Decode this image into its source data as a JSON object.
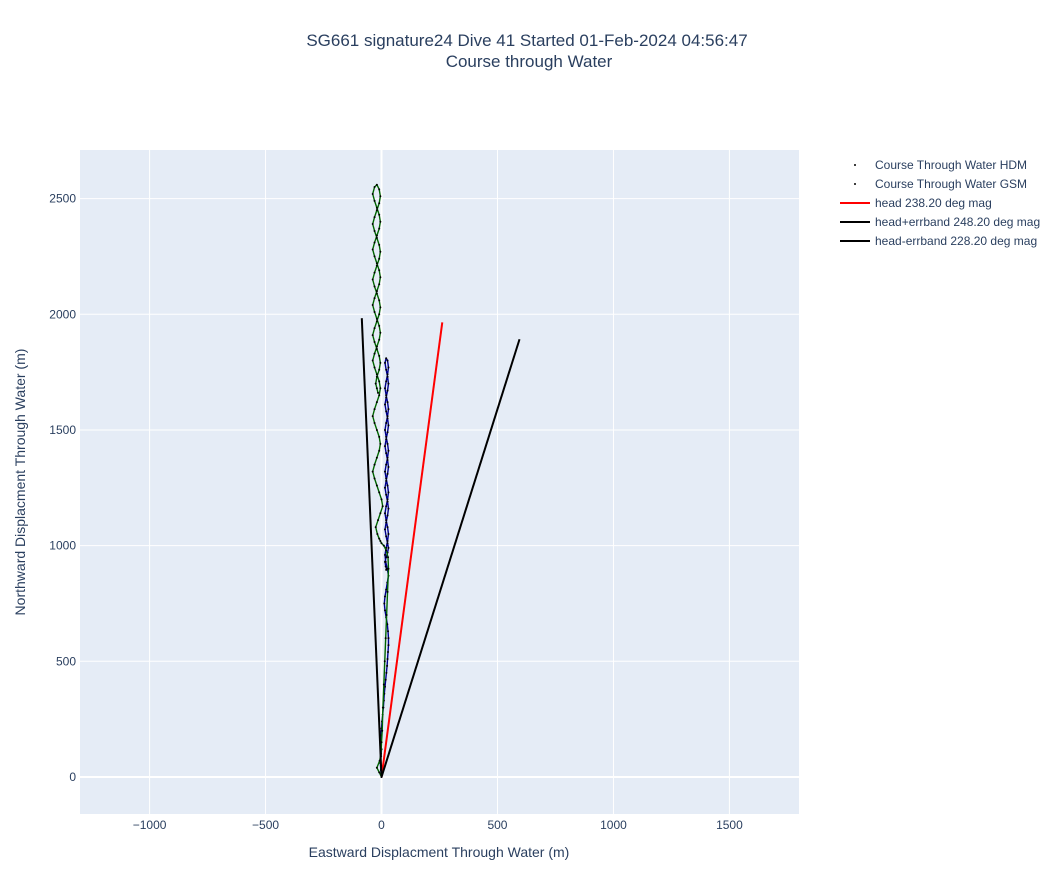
{
  "chart_data": {
    "type": "scatter",
    "title_line1": "SG661 signature24 Dive 41 Started 01-Feb-2024 04:56:47",
    "title_line2": "Course through Water",
    "xlabel": "Eastward Displacment Through Water (m)",
    "ylabel": "Northward Displacment Through Water (m)",
    "xlim": [
      -1300,
      1800
    ],
    "ylim": [
      -160,
      2710
    ],
    "xticks": [
      -1000,
      -500,
      0,
      500,
      1000,
      1500
    ],
    "xtick_labels": [
      "−1000",
      "−500",
      "0",
      "500",
      "1000",
      "1500"
    ],
    "yticks": [
      0,
      500,
      1000,
      1500,
      2000,
      2500
    ],
    "ytick_labels": [
      "0",
      "500",
      "1000",
      "1500",
      "2000",
      "2500"
    ],
    "grid": true,
    "legend_position": "right",
    "plot_bg": "#E5ECF6",
    "series": [
      {
        "name": "Course Through Water HDM",
        "kind": "markers",
        "color": "#00008B",
        "trace_color": "#000000",
        "x": [
          0,
          -3,
          -5,
          -2,
          0,
          -4,
          -3,
          0,
          2,
          5,
          8,
          10,
          12,
          15,
          18,
          21,
          24,
          26,
          28,
          30,
          30,
          28,
          25,
          20,
          15,
          12,
          15,
          20,
          25,
          30,
          25,
          18,
          15,
          20,
          26,
          30,
          26,
          20,
          15,
          20,
          26,
          30,
          26,
          20,
          15,
          20,
          26,
          30,
          26,
          20,
          15,
          20,
          26,
          30,
          26,
          20,
          15,
          20,
          26,
          30,
          26,
          20,
          15,
          20,
          26,
          30,
          26,
          20,
          15,
          20,
          26,
          30,
          26,
          20,
          15,
          20,
          26,
          30,
          26,
          20,
          15,
          20,
          26,
          30,
          26,
          20,
          15,
          20,
          26,
          30,
          26,
          20,
          15,
          18,
          22,
          20
        ],
        "y": [
          0,
          30,
          60,
          90,
          120,
          150,
          180,
          210,
          240,
          270,
          300,
          330,
          360,
          390,
          420,
          450,
          480,
          510,
          540,
          570,
          600,
          630,
          660,
          690,
          720,
          750,
          780,
          810,
          840,
          870,
          900,
          930,
          960,
          990,
          1020,
          1050,
          1080,
          1110,
          1140,
          1170,
          1200,
          1230,
          1260,
          1290,
          1320,
          1350,
          1380,
          1410,
          1440,
          1470,
          1500,
          1530,
          1560,
          1590,
          1620,
          1650,
          1680,
          1710,
          1740,
          1770,
          1800,
          1810,
          1790,
          1760,
          1730,
          1700,
          1670,
          1640,
          1610,
          1580,
          1550,
          1520,
          1490,
          1460,
          1430,
          1400,
          1370,
          1340,
          1310,
          1280,
          1250,
          1220,
          1190,
          1160,
          1130,
          1100,
          1070,
          1040,
          1010,
          990,
          970,
          950,
          930,
          910,
          900,
          895
        ]
      },
      {
        "name": "Course Through Water GSM",
        "kind": "markers",
        "color": "#006400",
        "trace_color": "#000000",
        "x": [
          0,
          -10,
          -20,
          -8,
          -2,
          0,
          3,
          6,
          10,
          14,
          18,
          22,
          26,
          30,
          28,
          20,
          10,
          0,
          -5,
          -10,
          -18,
          -25,
          -15,
          -5,
          5,
          0,
          -10,
          -20,
          -30,
          -38,
          -30,
          -20,
          -10,
          -5,
          -10,
          -20,
          -30,
          -38,
          -30,
          -20,
          -10,
          -5,
          -10,
          -20,
          -30,
          -38,
          -30,
          -20,
          -10,
          -5,
          -10,
          -20,
          -30,
          -38,
          -30,
          -20,
          -10,
          -5,
          -10,
          -20,
          -30,
          -38,
          -30,
          -20,
          -10,
          -5,
          -10,
          -20,
          -30,
          -38,
          -30,
          -20,
          -10,
          -5,
          -10,
          -20,
          -30,
          -38,
          -30,
          -20,
          -10,
          -5,
          -10,
          -20,
          -30,
          -38,
          -30,
          -20,
          -10,
          -5,
          -10,
          -20,
          -30,
          -38,
          -30,
          -20,
          -10,
          -5,
          -10,
          -20,
          -25,
          -20,
          -15
        ],
        "y": [
          0,
          20,
          40,
          70,
          100,
          150,
          200,
          300,
          400,
          500,
          600,
          700,
          800,
          900,
          950,
          980,
          1000,
          1010,
          1020,
          1030,
          1050,
          1080,
          1110,
          1140,
          1170,
          1200,
          1230,
          1260,
          1290,
          1320,
          1350,
          1380,
          1410,
          1440,
          1470,
          1500,
          1530,
          1560,
          1590,
          1620,
          1650,
          1680,
          1710,
          1740,
          1770,
          1800,
          1830,
          1860,
          1890,
          1920,
          1950,
          1980,
          2010,
          2040,
          2070,
          2100,
          2130,
          2160,
          2190,
          2220,
          2250,
          2280,
          2310,
          2340,
          2370,
          2400,
          2430,
          2460,
          2490,
          2520,
          2550,
          2560,
          2540,
          2510,
          2480,
          2450,
          2420,
          2390,
          2360,
          2330,
          2300,
          2270,
          2240,
          2210,
          2180,
          2150,
          2120,
          2090,
          2060,
          2030,
          2000,
          1970,
          1940,
          1910,
          1880,
          1850,
          1820,
          1790,
          1760,
          1730,
          1700,
          1680,
          1660
        ]
      },
      {
        "name": "head 238.20 deg mag",
        "kind": "line",
        "color": "#FF0000",
        "x": [
          0,
          262
        ],
        "y": [
          0,
          1965
        ]
      },
      {
        "name": "head+errband 248.20 deg mag",
        "kind": "line",
        "color": "#000000",
        "x": [
          0,
          595
        ],
        "y": [
          0,
          1892
        ]
      },
      {
        "name": "head-errband 228.20 deg mag",
        "kind": "line",
        "color": "#000000",
        "x": [
          0,
          -85
        ],
        "y": [
          0,
          1983
        ]
      }
    ]
  }
}
